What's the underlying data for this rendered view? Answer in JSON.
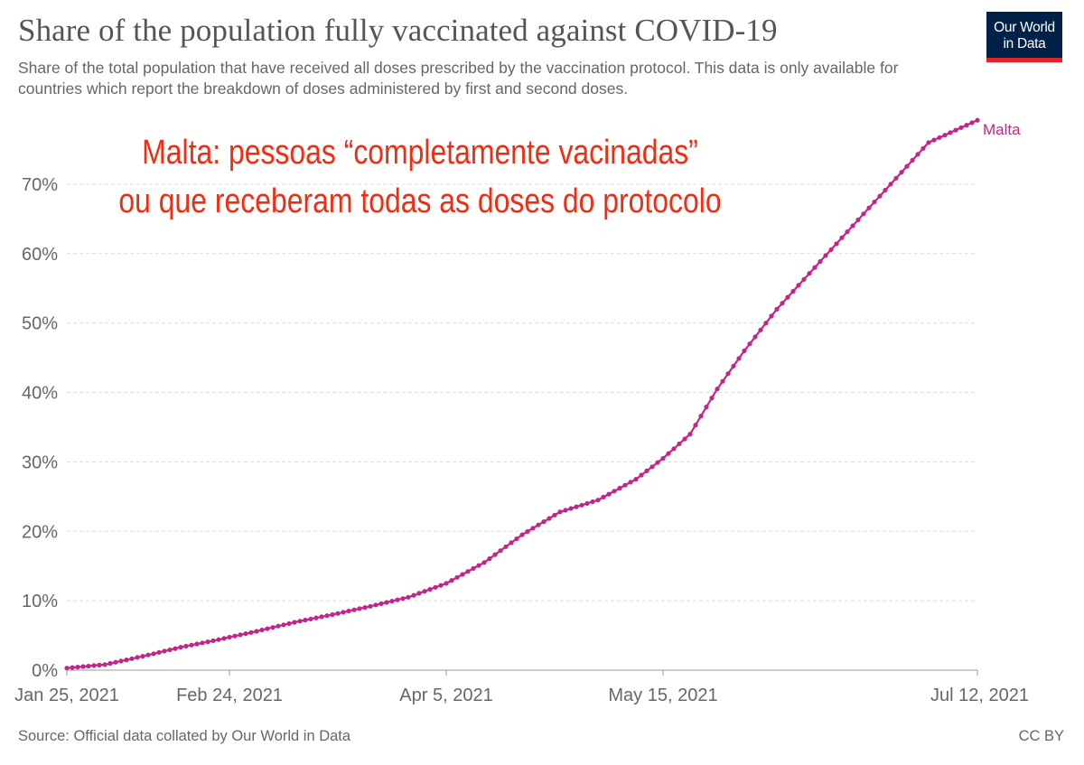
{
  "header": {
    "title": "Share of the population fully vaccinated against COVID-19",
    "subtitle": "Share of the total population that have received all doses prescribed by the vaccination protocol. This data is only available for countries which report the breakdown of doses administered by first and second doses.",
    "logo_line1": "Our World",
    "logo_line2": "in Data"
  },
  "annotation": {
    "line1": "Malta: pessoas “completamente vacinadas”",
    "line2": "ou que receberam todas as doses do protocolo"
  },
  "footer": {
    "source": "Source: Official data collated by Our World in Data",
    "license": "CC BY"
  },
  "colors": {
    "series": "#c0268a",
    "annotation": "#f02d12",
    "grid": "#dddddd",
    "logo_bg": "#002147",
    "logo_bar": "#e0232b"
  },
  "chart_data": {
    "type": "line",
    "x_ticks": [
      "Jan 25, 2021",
      "Feb 24, 2021",
      "Apr 5, 2021",
      "May 15, 2021",
      "Jul 12, 2021"
    ],
    "y_ticks": [
      "0%",
      "10%",
      "20%",
      "30%",
      "40%",
      "50%",
      "60%",
      "70%"
    ],
    "xlim": [
      "2021-01-25",
      "2021-07-12"
    ],
    "ylim": [
      0,
      80
    ],
    "grid": "horizontal dashed",
    "series": [
      {
        "name": "Malta",
        "points": [
          [
            "2021-01-25",
            0.3
          ],
          [
            "2021-02-01",
            0.8
          ],
          [
            "2021-02-08",
            2.0
          ],
          [
            "2021-02-15",
            3.3
          ],
          [
            "2021-02-22",
            4.4
          ],
          [
            "2021-03-01",
            5.6
          ],
          [
            "2021-03-08",
            6.9
          ],
          [
            "2021-03-15",
            8.0
          ],
          [
            "2021-03-22",
            9.2
          ],
          [
            "2021-03-29",
            10.5
          ],
          [
            "2021-04-05",
            12.5
          ],
          [
            "2021-04-12",
            15.5
          ],
          [
            "2021-04-19",
            19.5
          ],
          [
            "2021-04-26",
            22.8
          ],
          [
            "2021-05-03",
            24.5
          ],
          [
            "2021-05-10",
            27.5
          ],
          [
            "2021-05-15",
            30.5
          ],
          [
            "2021-05-20",
            34.0
          ],
          [
            "2021-05-25",
            40.5
          ],
          [
            "2021-05-30",
            46.0
          ],
          [
            "2021-06-05",
            52.0
          ],
          [
            "2021-06-12",
            58.0
          ],
          [
            "2021-06-19",
            64.0
          ],
          [
            "2021-06-26",
            70.0
          ],
          [
            "2021-07-03",
            76.0
          ],
          [
            "2021-07-12",
            79.2
          ]
        ]
      }
    ]
  }
}
